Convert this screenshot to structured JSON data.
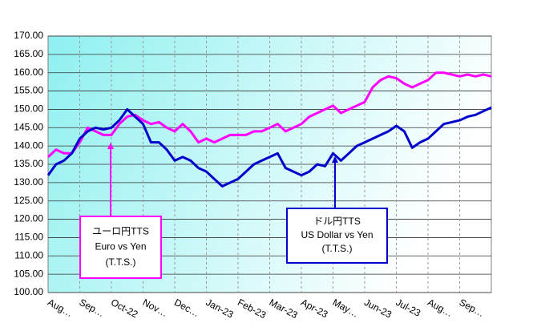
{
  "chart_data": {
    "type": "line",
    "categories": [
      "Aug…",
      null,
      null,
      null,
      "Sep…",
      null,
      null,
      null,
      "Oct-22",
      null,
      null,
      null,
      "Nov…",
      null,
      null,
      null,
      "Dec…",
      null,
      null,
      null,
      "Jan-23",
      null,
      null,
      null,
      "Feb-23",
      null,
      null,
      null,
      "Mar-23",
      null,
      null,
      null,
      "Apr-23",
      null,
      null,
      null,
      "May…",
      null,
      null,
      null,
      "Jun-23",
      null,
      null,
      null,
      "Jul-23",
      null,
      null,
      null,
      "Aug…",
      null,
      null,
      null,
      "Sep…",
      null,
      null,
      null,
      null
    ],
    "series": [
      {
        "name": "ユーロ円TTS",
        "color": "#ff00ff",
        "annotation": [
          "Euro vs Yen",
          "(T.T.S.)"
        ],
        "values": [
          137,
          139,
          138,
          138,
          141,
          145,
          144,
          143,
          143,
          146,
          148,
          148.5,
          147,
          146,
          146.5,
          145,
          144,
          146,
          144,
          141,
          142,
          141,
          142,
          143,
          143,
          143,
          144,
          144,
          145,
          146,
          144,
          145,
          146,
          148,
          149,
          150,
          151,
          149,
          150,
          151,
          152,
          156,
          158,
          159,
          158.5,
          157,
          156,
          157,
          158,
          160,
          160,
          159.5,
          159,
          159.5,
          159,
          159.5,
          159
        ]
      },
      {
        "name": "ドル円TTS",
        "color": "#0000cc",
        "annotation": [
          "US Dollar vs Yen",
          "(T.T.S.)"
        ],
        "values": [
          132,
          135,
          136,
          138,
          142,
          144,
          145,
          144.5,
          145,
          147,
          150,
          148,
          146,
          141,
          141,
          139,
          136,
          137,
          136,
          134,
          133,
          131,
          129,
          130,
          131,
          133,
          135,
          136,
          137,
          138,
          134,
          133,
          132,
          133,
          135,
          134.5,
          138,
          136,
          138,
          140,
          141,
          142,
          143,
          144,
          145.5,
          144,
          139.5,
          141,
          142,
          144,
          146,
          146.5,
          147,
          148,
          148.5,
          149.5,
          150.5
        ]
      }
    ],
    "ylim": [
      100,
      170
    ],
    "yticks": [
      {
        "value": 100,
        "label": "100.00"
      },
      {
        "value": 105,
        "label": "105.00"
      },
      {
        "value": 110,
        "label": "110.00"
      },
      {
        "value": 115,
        "label": "115.00"
      },
      {
        "value": 120,
        "label": "120.00"
      },
      {
        "value": 125,
        "label": "125.00"
      },
      {
        "value": 130,
        "label": "130.00"
      },
      {
        "value": 135,
        "label": "135.00"
      },
      {
        "value": 140,
        "label": "140.00"
      },
      {
        "value": 145,
        "label": "145.00"
      },
      {
        "value": 150,
        "label": "150.00"
      },
      {
        "value": 155,
        "label": "155.00"
      },
      {
        "value": 160,
        "label": "160.00"
      },
      {
        "value": 165,
        "label": "165.00"
      },
      {
        "value": 170,
        "label": "170.00"
      }
    ],
    "grid": true
  }
}
